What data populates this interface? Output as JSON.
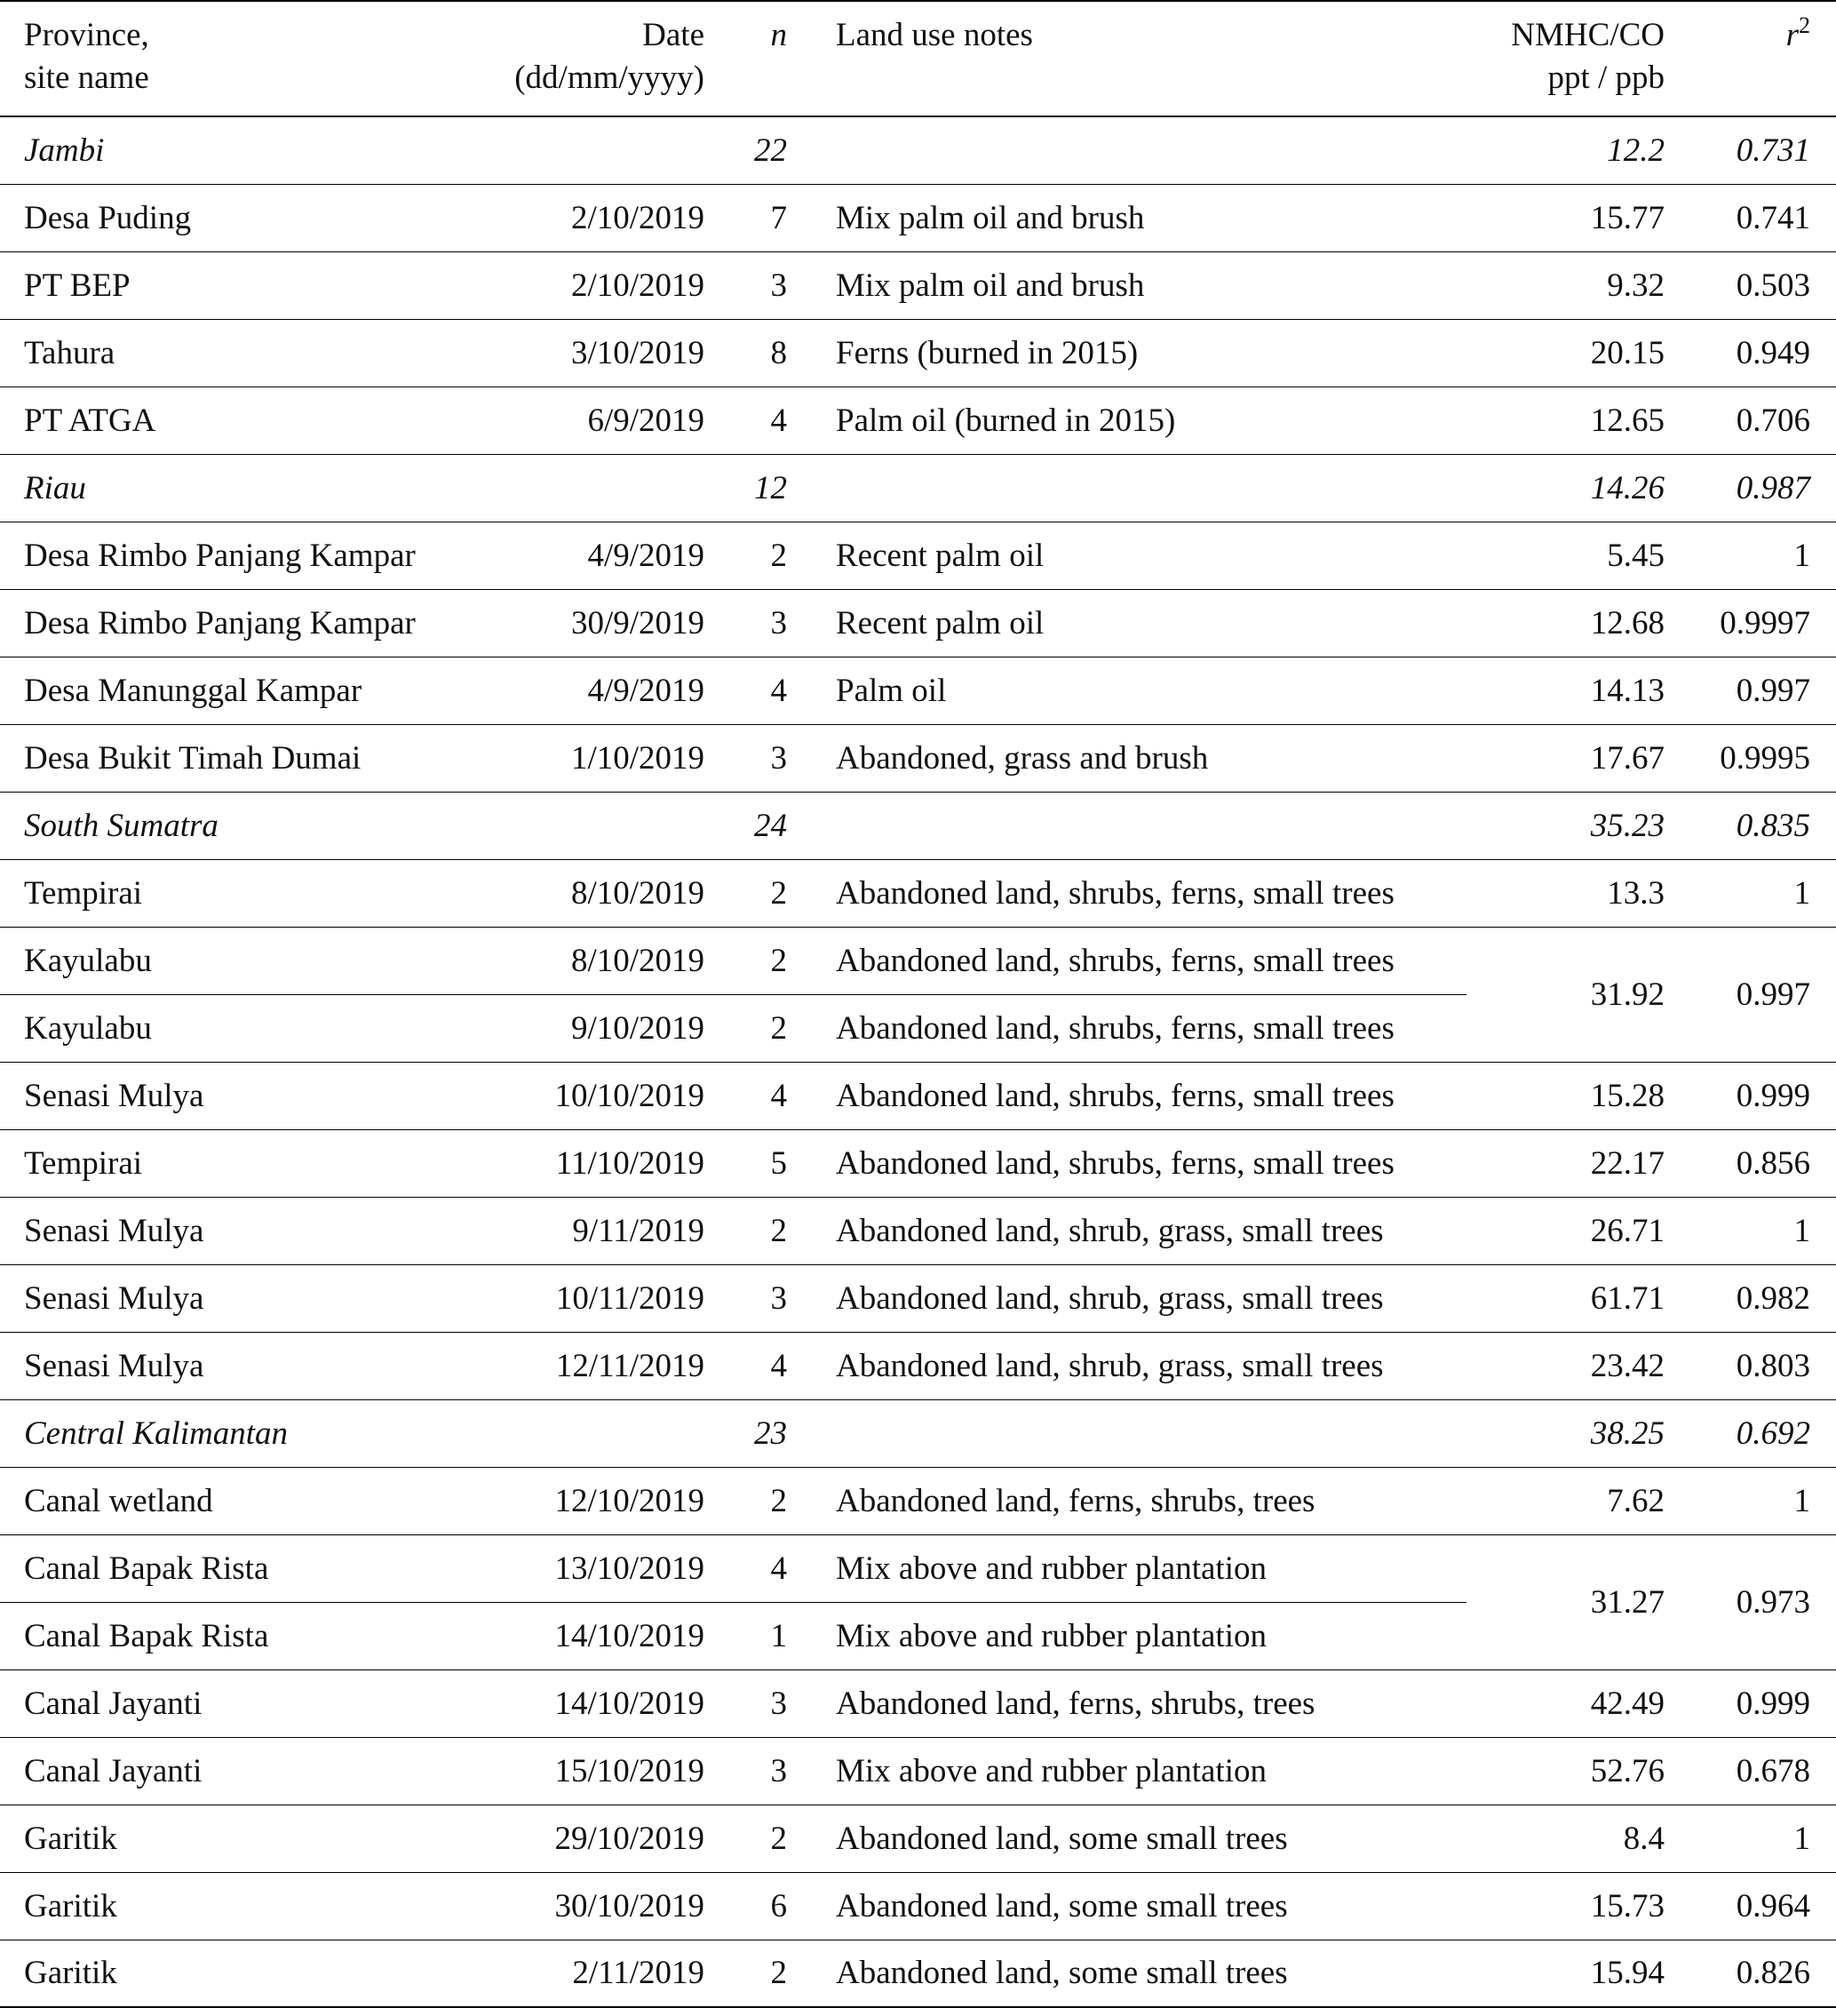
{
  "table": {
    "header": {
      "site": [
        "Province,",
        "site name"
      ],
      "date": [
        "Date",
        "(dd/mm/yyyy)"
      ],
      "n": "n",
      "notes": "Land use notes",
      "ratio": [
        "NMHC/CO",
        "ppt / ppb"
      ],
      "r2": {
        "base": "r",
        "sup": "2"
      }
    },
    "rows": [
      {
        "province": "Jambi",
        "n": 22,
        "ratio": 12.2,
        "r2": 0.731
      },
      {
        "site": "Desa Puding",
        "date": "2/10/2019",
        "n": 7,
        "notes": "Mix palm oil and brush",
        "ratio": 15.77,
        "r2": 0.741
      },
      {
        "site": "PT BEP",
        "date": "2/10/2019",
        "n": 3,
        "notes": "Mix palm oil and brush",
        "ratio": 9.32,
        "r2": 0.503
      },
      {
        "site": "Tahura",
        "date": "3/10/2019",
        "n": 8,
        "notes": "Ferns (burned in 2015)",
        "ratio": 20.15,
        "r2": 0.949
      },
      {
        "site": "PT ATGA",
        "date": "6/9/2019",
        "n": 4,
        "notes": "Palm oil (burned in 2015)",
        "ratio": 12.65,
        "r2": 0.706
      },
      {
        "province": "Riau",
        "n": 12,
        "ratio": 14.26,
        "r2": 0.987
      },
      {
        "site": "Desa Rimbo Panjang Kampar",
        "date": "4/9/2019",
        "n": 2,
        "notes": "Recent palm oil",
        "ratio": 5.45,
        "r2": 1
      },
      {
        "site": "Desa Rimbo Panjang Kampar",
        "date": "30/9/2019",
        "n": 3,
        "notes": "Recent palm oil",
        "ratio": 12.68,
        "r2": 0.9997
      },
      {
        "site": "Desa Manunggal Kampar",
        "date": "4/9/2019",
        "n": 4,
        "notes": "Palm oil",
        "ratio": 14.13,
        "r2": 0.997
      },
      {
        "site": "Desa Bukit Timah Dumai",
        "date": "1/10/2019",
        "n": 3,
        "notes": "Abandoned, grass and brush",
        "ratio": 17.67,
        "r2": 0.9995
      },
      {
        "province": "South Sumatra",
        "n": 24,
        "ratio": 35.23,
        "r2": 0.835
      },
      {
        "site": "Tempirai",
        "date": "8/10/2019",
        "n": 2,
        "notes": "Abandoned land, shrubs, ferns, small trees",
        "ratio": 13.3,
        "r2": 1
      },
      {
        "site": "Kayulabu",
        "date": "8/10/2019",
        "n": 2,
        "notes": "Abandoned land, shrubs, ferns, small trees",
        "ratio": 31.92,
        "r2": 0.997
      },
      {
        "site": "Kayulabu",
        "date": "9/10/2019",
        "n": 2,
        "notes": "Abandoned land, shrubs, ferns, small trees"
      },
      {
        "site": "Senasi Mulya",
        "date": "10/10/2019",
        "n": 4,
        "notes": "Abandoned land, shrubs, ferns, small trees",
        "ratio": 15.28,
        "r2": 0.999
      },
      {
        "site": "Tempirai",
        "date": "11/10/2019",
        "n": 5,
        "notes": "Abandoned land, shrubs, ferns, small trees",
        "ratio": 22.17,
        "r2": 0.856
      },
      {
        "site": "Senasi Mulya",
        "date": "9/11/2019",
        "n": 2,
        "notes": "Abandoned land, shrub, grass, small trees",
        "ratio": 26.71,
        "r2": 1
      },
      {
        "site": "Senasi Mulya",
        "date": "10/11/2019",
        "n": 3,
        "notes": "Abandoned land, shrub, grass, small trees",
        "ratio": 61.71,
        "r2": 0.982
      },
      {
        "site": "Senasi Mulya",
        "date": "12/11/2019",
        "n": 4,
        "notes": "Abandoned land, shrub, grass, small trees",
        "ratio": 23.42,
        "r2": 0.803
      },
      {
        "province": "Central Kalimantan",
        "n": 23,
        "ratio": 38.25,
        "r2": 0.692
      },
      {
        "site": "Canal wetland",
        "date": "12/10/2019",
        "n": 2,
        "notes": "Abandoned land, ferns, shrubs, trees",
        "ratio": 7.62,
        "r2": 1
      },
      {
        "site": "Canal Bapak Rista",
        "date": "13/10/2019",
        "n": 4,
        "notes": "Mix above and rubber plantation",
        "ratio": 31.27,
        "r2": 0.973
      },
      {
        "site": "Canal Bapak Rista",
        "date": "14/10/2019",
        "n": 1,
        "notes": "Mix above and rubber plantation"
      },
      {
        "site": "Canal Jayanti",
        "date": "14/10/2019",
        "n": 3,
        "notes": "Abandoned land, ferns, shrubs, trees",
        "ratio": 42.49,
        "r2": 0.999
      },
      {
        "site": "Canal Jayanti",
        "date": "15/10/2019",
        "n": 3,
        "notes": "Mix above and rubber plantation",
        "ratio": 52.76,
        "r2": 0.678
      },
      {
        "site": "Garitik",
        "date": "29/10/2019",
        "n": 2,
        "notes": "Abandoned land, some small trees",
        "ratio": 8.4,
        "r2": 1
      },
      {
        "site": "Garitik",
        "date": "30/10/2019",
        "n": 6,
        "notes": "Abandoned land, some small trees",
        "ratio": 15.73,
        "r2": 0.964
      },
      {
        "site": "Garitik",
        "date": "2/11/2019",
        "n": 2,
        "notes": "Abandoned land, some small trees",
        "ratio": 15.94,
        "r2": 0.826
      }
    ]
  }
}
